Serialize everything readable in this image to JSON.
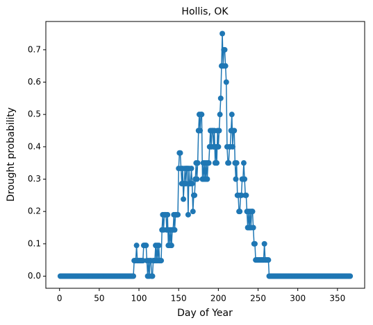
{
  "chart_data": {
    "type": "line",
    "title": "Hollis, OK",
    "xlabel": "Day of Year",
    "ylabel": "Drought probability",
    "x": [
      1,
      2,
      3,
      4,
      5,
      6,
      7,
      8,
      9,
      10,
      11,
      12,
      13,
      14,
      15,
      16,
      17,
      18,
      19,
      20,
      21,
      22,
      23,
      24,
      25,
      26,
      27,
      28,
      29,
      30,
      31,
      32,
      33,
      34,
      35,
      36,
      37,
      38,
      39,
      40,
      41,
      42,
      43,
      44,
      45,
      46,
      47,
      48,
      49,
      50,
      51,
      52,
      53,
      54,
      55,
      56,
      57,
      58,
      59,
      60,
      61,
      62,
      63,
      64,
      65,
      66,
      67,
      68,
      69,
      70,
      71,
      72,
      73,
      74,
      75,
      76,
      77,
      78,
      79,
      80,
      81,
      82,
      83,
      84,
      85,
      86,
      87,
      88,
      89,
      90,
      91,
      92,
      93,
      94,
      95,
      96,
      97,
      98,
      99,
      100,
      101,
      102,
      103,
      104,
      105,
      106,
      107,
      108,
      109,
      110,
      111,
      112,
      113,
      114,
      115,
      116,
      117,
      118,
      119,
      120,
      121,
      122,
      123,
      124,
      125,
      126,
      127,
      128,
      129,
      130,
      131,
      132,
      133,
      134,
      135,
      136,
      137,
      138,
      139,
      140,
      141,
      142,
      143,
      144,
      145,
      146,
      147,
      148,
      149,
      150,
      151,
      152,
      153,
      154,
      155,
      156,
      157,
      158,
      159,
      160,
      161,
      162,
      163,
      164,
      165,
      166,
      167,
      168,
      169,
      170,
      171,
      172,
      173,
      174,
      175,
      176,
      177,
      178,
      179,
      180,
      181,
      182,
      183,
      184,
      185,
      186,
      187,
      188,
      189,
      190,
      191,
      192,
      193,
      194,
      195,
      196,
      197,
      198,
      199,
      200,
      201,
      202,
      203,
      204,
      205,
      206,
      207,
      208,
      209,
      210,
      211,
      212,
      213,
      214,
      215,
      216,
      217,
      218,
      219,
      220,
      221,
      222,
      223,
      224,
      225,
      226,
      227,
      228,
      229,
      230,
      231,
      232,
      233,
      234,
      235,
      236,
      237,
      238,
      239,
      240,
      241,
      242,
      243,
      244,
      245,
      246,
      247,
      248,
      249,
      250,
      251,
      252,
      253,
      254,
      255,
      256,
      257,
      258,
      259,
      260,
      261,
      262,
      263,
      264,
      265,
      266,
      267,
      268,
      269,
      270,
      271,
      272,
      273,
      274,
      275,
      276,
      277,
      278,
      279,
      280,
      281,
      282,
      283,
      284,
      285,
      286,
      287,
      288,
      289,
      290,
      291,
      292,
      293,
      294,
      295,
      296,
      297,
      298,
      299,
      300,
      301,
      302,
      303,
      304,
      305,
      306,
      307,
      308,
      309,
      310,
      311,
      312,
      313,
      314,
      315,
      316,
      317,
      318,
      319,
      320,
      321,
      322,
      323,
      324,
      325,
      326,
      327,
      328,
      329,
      330,
      331,
      332,
      333,
      334,
      335,
      336,
      337,
      338,
      339,
      340,
      341,
      342,
      343,
      344,
      345,
      346,
      347,
      348,
      349,
      350,
      351,
      352,
      353,
      354,
      355,
      356,
      357,
      358,
      359,
      360,
      361,
      362,
      363,
      364,
      365,
      366
    ],
    "series": [
      {
        "name": "Hollis, OK",
        "color": "#1f77b4",
        "values": [
          0,
          0,
          0,
          0,
          0,
          0,
          0,
          0,
          0,
          0,
          0,
          0,
          0,
          0,
          0,
          0,
          0,
          0,
          0,
          0,
          0,
          0,
          0,
          0,
          0,
          0,
          0,
          0,
          0,
          0,
          0,
          0,
          0,
          0,
          0,
          0,
          0,
          0,
          0,
          0,
          0,
          0,
          0,
          0,
          0,
          0,
          0,
          0,
          0,
          0,
          0,
          0,
          0,
          0,
          0,
          0,
          0,
          0,
          0,
          0,
          0,
          0,
          0,
          0,
          0,
          0,
          0,
          0,
          0,
          0,
          0,
          0,
          0,
          0,
          0,
          0,
          0,
          0,
          0,
          0,
          0,
          0,
          0,
          0,
          0,
          0,
          0,
          0,
          0,
          0,
          0,
          0,
          0,
          0.048,
          0.048,
          0.048,
          0.095,
          0.048,
          0.048,
          0.048,
          0.048,
          0.048,
          0.048,
          0.048,
          0.048,
          0.095,
          0.095,
          0.095,
          0.095,
          0.048,
          0,
          0.048,
          0,
          0.048,
          0.048,
          0,
          0,
          0.048,
          0.048,
          0.048,
          0.095,
          0.048,
          0.095,
          0.048,
          0.095,
          0.048,
          0.048,
          0.048,
          0.143,
          0.19,
          0.143,
          0.19,
          0.19,
          0.19,
          0.143,
          0.19,
          0.095,
          0.143,
          0.095,
          0.143,
          0.095,
          0.143,
          0.143,
          0.19,
          0.143,
          0.19,
          0.19,
          0.19,
          0.19,
          0.333,
          0.381,
          0.381,
          0.333,
          0.286,
          0.333,
          0.238,
          0.286,
          0.333,
          0.286,
          0.333,
          0.333,
          0.19,
          0.333,
          0.286,
          0.286,
          0.333,
          0.286,
          0.2,
          0.25,
          0.25,
          0.3,
          0.35,
          0.3,
          0.35,
          0.45,
          0.5,
          0.45,
          0.5,
          0.5,
          0.3,
          0.35,
          0.3,
          0.35,
          0.3,
          0.35,
          0.3,
          0.35,
          0.35,
          0.4,
          0.45,
          0.4,
          0.45,
          0.45,
          0.4,
          0.45,
          0.35,
          0.4,
          0.35,
          0.45,
          0.4,
          0.45,
          0.5,
          0.55,
          0.65,
          0.75,
          0.65,
          0.7,
          0.7,
          0.65,
          0.6,
          0.4,
          0.35,
          0.35,
          0.4,
          0.4,
          0.45,
          0.5,
          0.4,
          0.45,
          0.45,
          0.35,
          0.3,
          0.35,
          0.25,
          0.25,
          0.2,
          0.2,
          0.25,
          0.25,
          0.3,
          0.3,
          0.35,
          0.3,
          0.25,
          0.25,
          0.2,
          0.15,
          0.2,
          0.15,
          0.2,
          0.15,
          0.2,
          0.2,
          0.15,
          0.1,
          0.1,
          0.05,
          0.05,
          0.05,
          0.05,
          0.05,
          0.05,
          0.05,
          0.05,
          0.05,
          0.05,
          0.05,
          0.1,
          0.05,
          0.05,
          0.05,
          0.05,
          0.05,
          0,
          0,
          0,
          0,
          0,
          0,
          0,
          0,
          0,
          0,
          0,
          0,
          0,
          0,
          0,
          0,
          0,
          0,
          0,
          0,
          0,
          0,
          0,
          0,
          0,
          0,
          0,
          0,
          0,
          0,
          0,
          0,
          0,
          0,
          0,
          0,
          0,
          0,
          0,
          0,
          0,
          0,
          0,
          0,
          0,
          0,
          0,
          0,
          0,
          0,
          0,
          0,
          0,
          0,
          0,
          0,
          0,
          0,
          0,
          0,
          0,
          0,
          0,
          0,
          0,
          0,
          0,
          0,
          0,
          0,
          0,
          0,
          0,
          0,
          0,
          0,
          0,
          0,
          0,
          0,
          0,
          0,
          0,
          0,
          0,
          0,
          0,
          0,
          0,
          0,
          0,
          0,
          0,
          0,
          0,
          0,
          0,
          0,
          0,
          0,
          0,
          0,
          0
        ]
      }
    ],
    "xlim": [
      -17.25,
      384.25
    ],
    "xticks": [
      0,
      50,
      100,
      150,
      200,
      250,
      300,
      350
    ],
    "ylim": [
      -0.0375,
      0.7875
    ],
    "yticks": [
      {
        "value": 0,
        "label": "0.0"
      },
      0.1,
      0.2,
      0.3,
      0.4,
      0.5,
      0.6,
      0.7
    ],
    "grid": false,
    "markers": true
  }
}
